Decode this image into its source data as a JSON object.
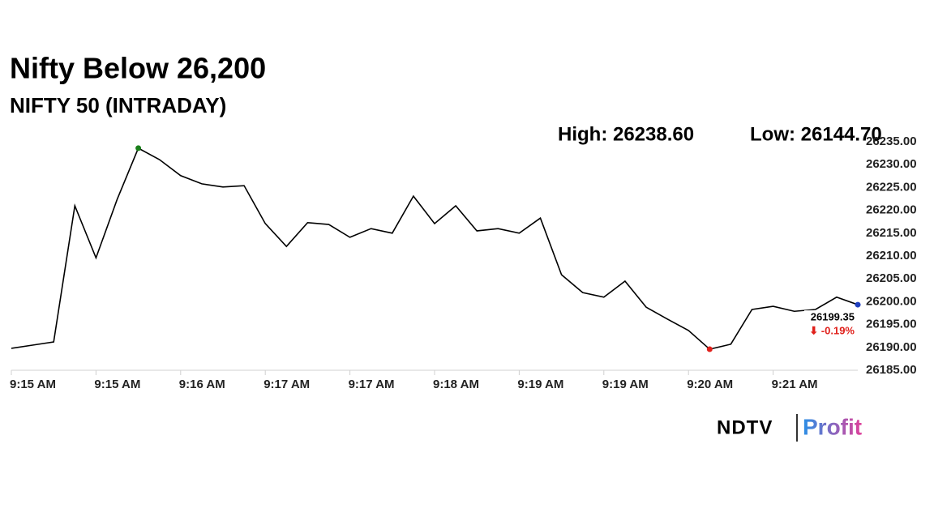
{
  "chart_data": {
    "type": "line",
    "title": "Nifty Below 26,200",
    "subtitle": "NIFTY 50 (INTRADAY)",
    "high_label": "High: 26238.60",
    "low_label": "Low: 26144.70",
    "categories": [
      "9:15 AM",
      null,
      null,
      null,
      "9:15 AM",
      null,
      null,
      null,
      "9:16 AM",
      null,
      null,
      null,
      "9:17 AM",
      null,
      null,
      null,
      "9:17 AM",
      null,
      null,
      null,
      "9:18 AM",
      null,
      null,
      null,
      "9:19 AM",
      null,
      null,
      null,
      "9:19 AM",
      null,
      null,
      null,
      "9:20 AM",
      null,
      null,
      null,
      "9:21 AM",
      null,
      null,
      null,
      null
    ],
    "series": [
      {
        "name": "NIFTY 50",
        "color": "#000000",
        "values": [
          26189.8,
          26190.5,
          26191.2,
          26221.0,
          26209.6,
          26222.4,
          26233.6,
          26231.1,
          26227.6,
          26225.8,
          26225.1,
          26225.4,
          26217.1,
          26212.1,
          26217.3,
          26216.9,
          26214.1,
          26216.0,
          26215.0,
          26223.1,
          26217.1,
          26221.0,
          26215.5,
          26216.0,
          26215.0,
          26218.3,
          26205.9,
          26202.0,
          26201.0,
          26204.5,
          26198.8,
          26196.2,
          26193.7,
          26189.6,
          26190.7,
          26198.3,
          26199.0,
          26197.9,
          26198.3,
          26201.0,
          26199.35
        ]
      }
    ],
    "last_value_label": "26199.35",
    "change_label": "⬇ -0.19%",
    "change_color": "#e0201b",
    "high_marker_color": "#1a7f1a",
    "low_marker_color": "#e0201b",
    "last_marker_color": "#1f3fbf",
    "ylim": [
      26185,
      26235
    ],
    "yticks": [
      {
        "value": 26185,
        "label": "26185.00"
      },
      {
        "value": 26190,
        "label": "26190.00"
      },
      {
        "value": 26195,
        "label": "26195.00"
      },
      {
        "value": 26200,
        "label": "26200.00"
      },
      {
        "value": 26205,
        "label": "26205.00"
      },
      {
        "value": 26210,
        "label": "26210.00"
      },
      {
        "value": 26215,
        "label": "26215.00"
      },
      {
        "value": 26220,
        "label": "26220.00"
      },
      {
        "value": 26225,
        "label": "26225.00"
      },
      {
        "value": 26230,
        "label": "26230.00"
      },
      {
        "value": 26235,
        "label": "26235.00"
      }
    ],
    "grid": false
  },
  "logo": {
    "left": "NDTV",
    "right": "Profit"
  }
}
